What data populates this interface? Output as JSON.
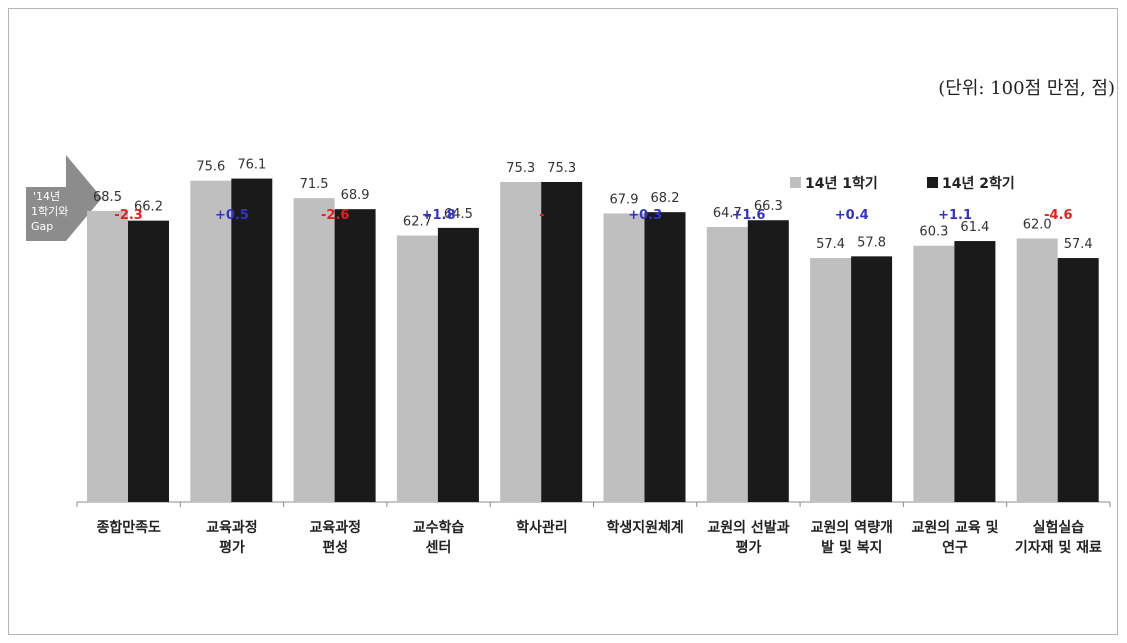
{
  "unit_note": "(단위: 100점 만점, 점)",
  "colors": {
    "series1": "#bfbfbf",
    "series2": "#1a1a1a",
    "gap_positive": "#3333cc",
    "gap_negative": "#e61e1e",
    "badge": "#8c8c8c"
  },
  "gap_badge": {
    "lines": [
      "'14년",
      "1학기와",
      "Gap"
    ]
  },
  "chart_data": {
    "type": "bar",
    "title": "",
    "xlabel": "",
    "ylabel": "",
    "ylim": [
      0,
      100
    ],
    "grid": false,
    "legend_position": "top-right",
    "categories": [
      [
        "종합만족도"
      ],
      [
        "교육과정",
        "평가"
      ],
      [
        "교육과정",
        "편성"
      ],
      [
        "교수학습",
        "센터"
      ],
      [
        "학사관리"
      ],
      [
        "학생지원체계"
      ],
      [
        "교원의 선발과",
        "평가"
      ],
      [
        "교원의 역량개",
        "발 및 복지"
      ],
      [
        "교원의 교육 및",
        "연구"
      ],
      [
        "실험실습",
        "기자재 및 재료"
      ]
    ],
    "series": [
      {
        "name": "14년 1학기",
        "values": [
          68.5,
          75.6,
          71.5,
          62.7,
          75.3,
          67.9,
          64.7,
          57.4,
          60.3,
          62.0
        ]
      },
      {
        "name": "14년 2학기",
        "values": [
          66.2,
          76.1,
          68.9,
          64.5,
          75.3,
          68.2,
          66.3,
          57.8,
          61.4,
          57.4
        ]
      }
    ],
    "gap_labels": [
      "-2.3",
      "+0.5",
      "-2.6",
      "+1.8",
      "-",
      "+0.3",
      "+1.6",
      "+0.4",
      "+1.1",
      "-4.6"
    ]
  }
}
